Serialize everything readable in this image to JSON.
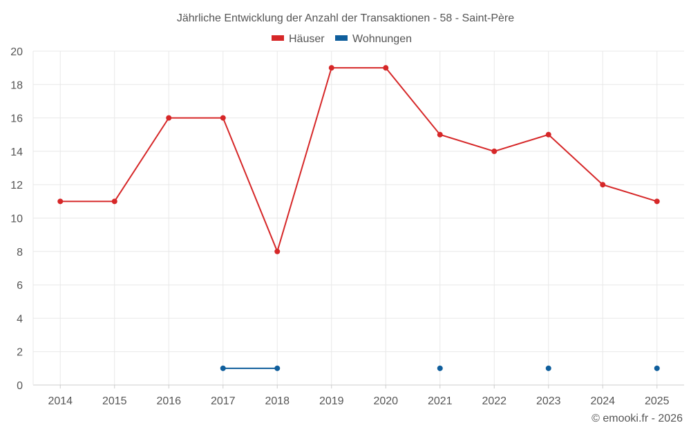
{
  "chart_data": {
    "type": "line",
    "title": "Jährliche Entwicklung der Anzahl der Transaktionen - 58 - Saint-Père",
    "categories": [
      "2014",
      "2015",
      "2016",
      "2017",
      "2018",
      "2019",
      "2020",
      "2021",
      "2022",
      "2023",
      "2024",
      "2025"
    ],
    "ylim": [
      0,
      20
    ],
    "yticks": [
      0,
      2,
      4,
      6,
      8,
      10,
      12,
      14,
      16,
      18,
      20
    ],
    "grid": true,
    "legend_position": "top-center",
    "series": [
      {
        "name": "Häuser",
        "color": "#d62728",
        "values": [
          11,
          11,
          16,
          16,
          8,
          19,
          19,
          15,
          14,
          15,
          12,
          11
        ]
      },
      {
        "name": "Wohnungen",
        "color": "#0f5e9c",
        "values": [
          null,
          null,
          null,
          1,
          1,
          null,
          null,
          1,
          null,
          1,
          null,
          1
        ]
      }
    ]
  },
  "credit": "© emooki.fr - 2026"
}
